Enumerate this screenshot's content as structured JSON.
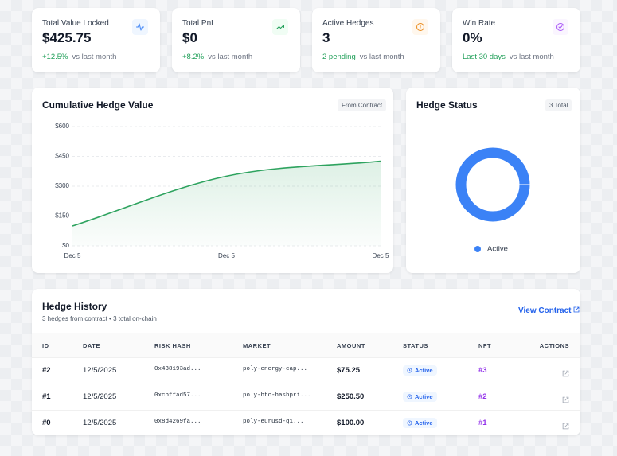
{
  "stats": [
    {
      "label": "Total Value Locked",
      "value": "$425.75",
      "change": "+12.5%",
      "note": "vs last month"
    },
    {
      "label": "Total PnL",
      "value": "$0",
      "change": "+8.2%",
      "note": "vs last month"
    },
    {
      "label": "Active Hedges",
      "value": "3",
      "change": "2 pending",
      "note": "vs last month"
    },
    {
      "label": "Win Rate",
      "value": "0%",
      "change": "Last 30 days",
      "note": "vs last month"
    }
  ],
  "chart_data": [
    {
      "type": "line",
      "title": "Cumulative Hedge Value",
      "badge": "From Contract",
      "categories": [
        "Dec 5",
        "Dec 5",
        "Dec 5"
      ],
      "values": [
        100,
        350.5,
        425.75
      ],
      "color": "#2ea35f",
      "ylim": [
        0,
        600
      ],
      "yticks": [
        {
          "value": 0,
          "label": "$0"
        },
        {
          "value": 150,
          "label": "$150"
        },
        {
          "value": 300,
          "label": "$300"
        },
        {
          "value": 450,
          "label": "$450"
        },
        {
          "value": 600,
          "label": "$600"
        }
      ],
      "grid": true
    },
    {
      "type": "pie",
      "title": "Hedge Status",
      "badge": "3 Total",
      "categories": [
        "Active"
      ],
      "values": [
        3
      ],
      "colors": [
        "#3b82f6"
      ],
      "donut": true,
      "legend": "bottom"
    }
  ],
  "history": {
    "title": "Hedge History",
    "subtitle": "3 hedges from contract • 3 total on-chain",
    "link": "View Contract",
    "columns": [
      "ID",
      "DATE",
      "RISK HASH",
      "MARKET",
      "AMOUNT",
      "STATUS",
      "NFT",
      "ACTIONS"
    ],
    "rows": [
      [
        "#2",
        "12/5/2025",
        "0x438193ad...",
        "poly-energy-cap...",
        "$75.25",
        "Active",
        "#3"
      ],
      [
        "#1",
        "12/5/2025",
        "0xcbffad57...",
        "poly-btc-hashpri...",
        "$250.50",
        "Active",
        "#2"
      ],
      [
        "#0",
        "12/5/2025",
        "0x8d4269fa...",
        "poly-eurusd-q1...",
        "$100.00",
        "Active",
        "#1"
      ]
    ]
  }
}
